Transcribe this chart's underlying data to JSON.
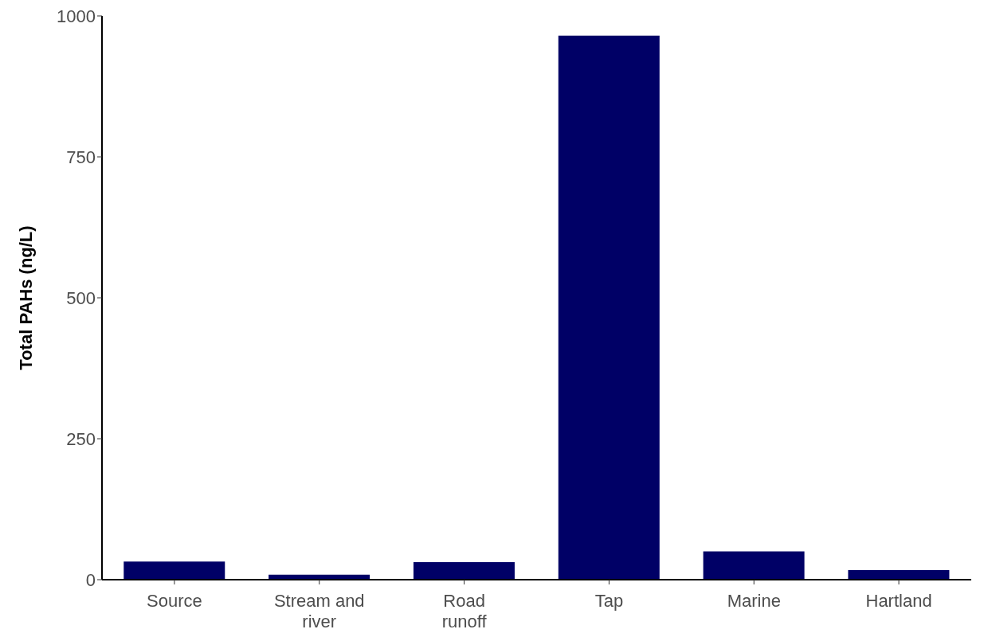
{
  "chart_data": {
    "type": "bar",
    "ylabel": "Total PAHs (ng/L)",
    "categories": [
      "Source",
      "Stream and\nriver",
      "Road\nrunoff",
      "Tap",
      "Marine",
      "Hartland"
    ],
    "values": [
      32,
      9,
      31,
      965,
      50,
      17
    ],
    "color": "#000066",
    "ylim": [
      0,
      1000
    ],
    "yticks": [
      0,
      250,
      500,
      750,
      1000
    ],
    "grid": false,
    "legend": false
  }
}
